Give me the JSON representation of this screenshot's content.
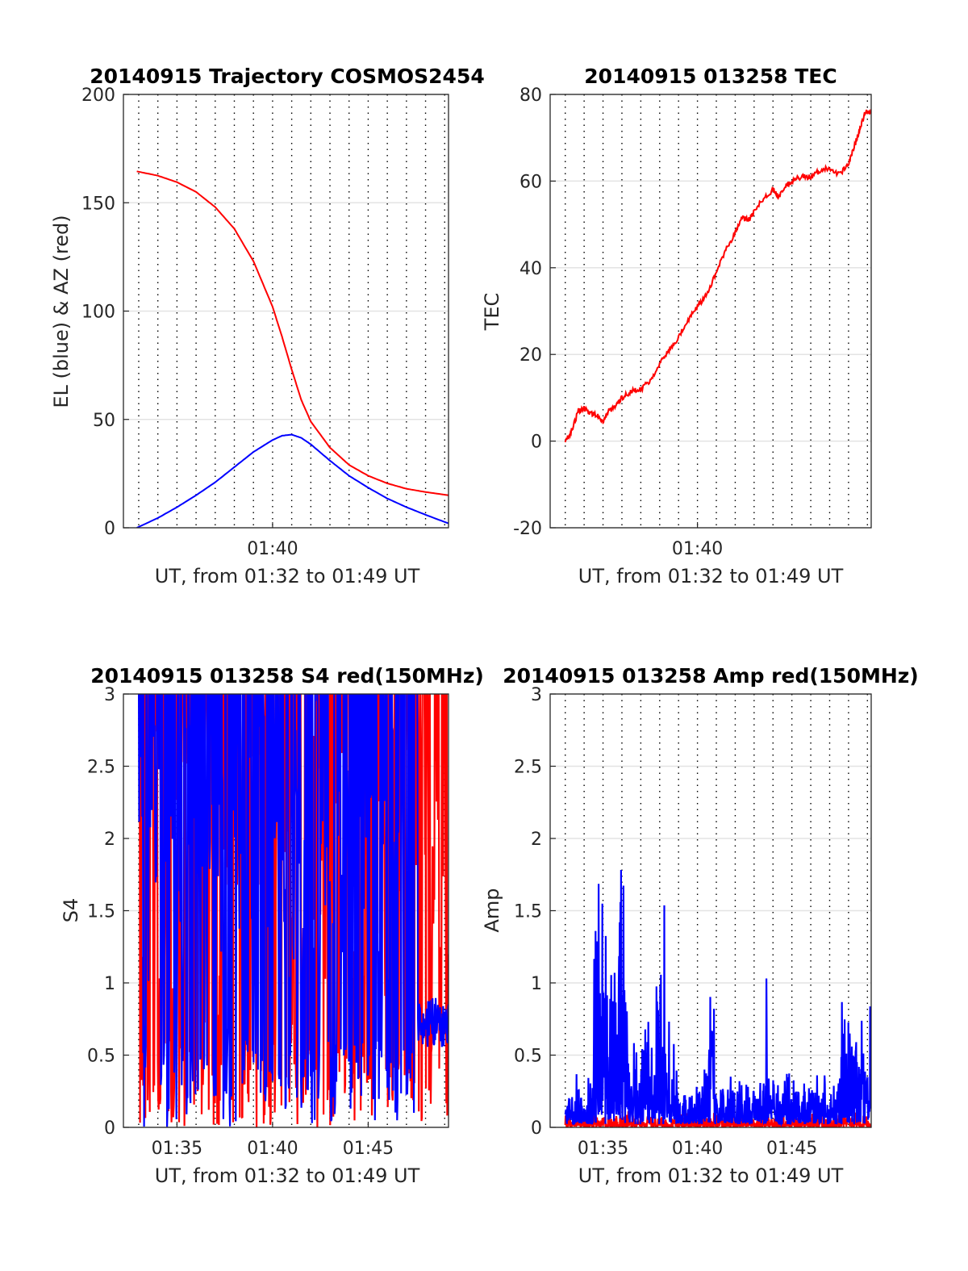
{
  "chart_data": [
    {
      "type": "line",
      "title": "20140915 Trajectory COSMOS2454",
      "xlabel": "UT, from 01:32 to 01:49 UT",
      "ylabel": "EL (blue) & AZ (red)",
      "xlim_minutes": [
        32.2,
        49.2
      ],
      "ylim": [
        0,
        200
      ],
      "yticks": [
        "0",
        "50",
        "100",
        "150",
        "200"
      ],
      "xticks": [
        {
          "label": "01:40",
          "value": 40
        }
      ],
      "grid": true,
      "series": [
        {
          "color": "#ff0000",
          "points": [
            [
              32.9,
              164.5
            ],
            [
              34,
              162.5
            ],
            [
              35,
              159.5
            ],
            [
              36,
              155
            ],
            [
              37,
              148
            ],
            [
              38,
              138
            ],
            [
              39,
              123
            ],
            [
              40,
              102
            ],
            [
              40.5,
              88
            ],
            [
              41,
              73
            ],
            [
              41.5,
              59
            ],
            [
              42,
              49
            ],
            [
              43,
              37
            ],
            [
              44,
              29
            ],
            [
              45,
              24
            ],
            [
              46,
              20.5
            ],
            [
              47,
              18
            ],
            [
              48,
              16.5
            ],
            [
              49.2,
              15
            ]
          ]
        },
        {
          "color": "#0000ff",
          "points": [
            [
              32.9,
              0
            ],
            [
              34,
              4.5
            ],
            [
              35,
              9.5
            ],
            [
              36,
              15
            ],
            [
              37,
              21
            ],
            [
              38,
              28
            ],
            [
              39,
              35
            ],
            [
              40,
              40.5
            ],
            [
              40.5,
              42.5
            ],
            [
              41,
              43
            ],
            [
              41.5,
              41.5
            ],
            [
              42,
              38.5
            ],
            [
              43,
              31
            ],
            [
              44,
              24
            ],
            [
              45,
              18.5
            ],
            [
              46,
              13.5
            ],
            [
              47,
              9.5
            ],
            [
              48,
              6
            ],
            [
              49.2,
              2
            ]
          ]
        }
      ]
    },
    {
      "type": "line",
      "title": "20140915 013258 TEC",
      "xlabel": "UT, from 01:32 to 01:49 UT",
      "ylabel": "TEC",
      "xlim_minutes": [
        32.2,
        49.2
      ],
      "ylim": [
        -20,
        80
      ],
      "yticks": [
        "-20",
        "0",
        "20",
        "40",
        "60",
        "80"
      ],
      "xticks": [
        {
          "label": "01:40",
          "value": 40
        }
      ],
      "grid": true,
      "series": [
        {
          "color": "#ff0000",
          "points": [
            [
              33,
              0
            ],
            [
              33.3,
              2
            ],
            [
              33.7,
              7
            ],
            [
              34,
              7.5
            ],
            [
              34.3,
              6.5
            ],
            [
              34.7,
              6
            ],
            [
              35,
              4.5
            ],
            [
              35.3,
              7
            ],
            [
              35.7,
              8
            ],
            [
              36,
              10
            ],
            [
              36.5,
              11.5
            ],
            [
              37,
              12
            ],
            [
              37.5,
              14
            ],
            [
              38,
              18
            ],
            [
              38.5,
              21
            ],
            [
              39,
              24
            ],
            [
              39.5,
              28
            ],
            [
              40,
              31
            ],
            [
              40.5,
              34
            ],
            [
              41,
              39
            ],
            [
              41.5,
              44
            ],
            [
              42,
              48
            ],
            [
              42.3,
              51.5
            ],
            [
              42.7,
              51
            ],
            [
              43,
              53
            ],
            [
              43.5,
              56
            ],
            [
              44,
              58
            ],
            [
              44.3,
              56.5
            ],
            [
              44.7,
              59
            ],
            [
              45,
              60
            ],
            [
              45.5,
              61
            ],
            [
              46,
              61
            ],
            [
              46.5,
              62.5
            ],
            [
              47,
              63
            ],
            [
              47.5,
              61.5
            ],
            [
              48,
              64
            ],
            [
              48.3,
              68
            ],
            [
              48.6,
              72
            ],
            [
              48.9,
              76
            ],
            [
              49.2,
              76
            ]
          ]
        }
      ]
    },
    {
      "type": "line",
      "title": "20140915 013258 S4 red(150MHz)",
      "xlabel": "UT, from 01:32 to 01:49 UT",
      "ylabel": "S4",
      "xlim_minutes": [
        32.2,
        49.2
      ],
      "ylim": [
        0,
        3
      ],
      "yticks": [
        "0",
        "0.5",
        "1",
        "1.5",
        "2",
        "2.5",
        "3"
      ],
      "xticks": [
        {
          "label": "01:35",
          "value": 35
        },
        {
          "label": "01:40",
          "value": 40
        },
        {
          "label": "01:45",
          "value": 45
        }
      ],
      "grid": true,
      "series": [
        {
          "color": "#ff0000",
          "t_range": [
            33.0,
            49.2
          ],
          "n": 700,
          "pattern": "noisy",
          "seed": 7
        },
        {
          "color": "#0000ff",
          "t_range": [
            33.0,
            49.2
          ],
          "n": 700,
          "pattern": "noisy",
          "seed": 13
        }
      ]
    },
    {
      "type": "line",
      "title": "20140915 013258 Amp red(150MHz)",
      "xlabel": "UT, from 01:32 to 01:49 UT",
      "ylabel": "Amp",
      "xlim_minutes": [
        32.2,
        49.2
      ],
      "ylim": [
        0,
        3
      ],
      "yticks": [
        "0",
        "0.5",
        "1",
        "1.5",
        "2",
        "2.5",
        "3"
      ],
      "xticks": [
        {
          "label": "01:35",
          "value": 35
        },
        {
          "label": "01:40",
          "value": 40
        },
        {
          "label": "01:45",
          "value": 45
        }
      ],
      "grid": true,
      "series": [
        {
          "color": "#ff0000",
          "t_range": [
            33.0,
            49.2
          ],
          "n": 900,
          "pattern": "spiky",
          "seed": 3
        },
        {
          "color": "#0000ff",
          "t_range": [
            33.0,
            49.2
          ],
          "n": 900,
          "pattern": "spiky",
          "seed": 5
        }
      ]
    }
  ]
}
